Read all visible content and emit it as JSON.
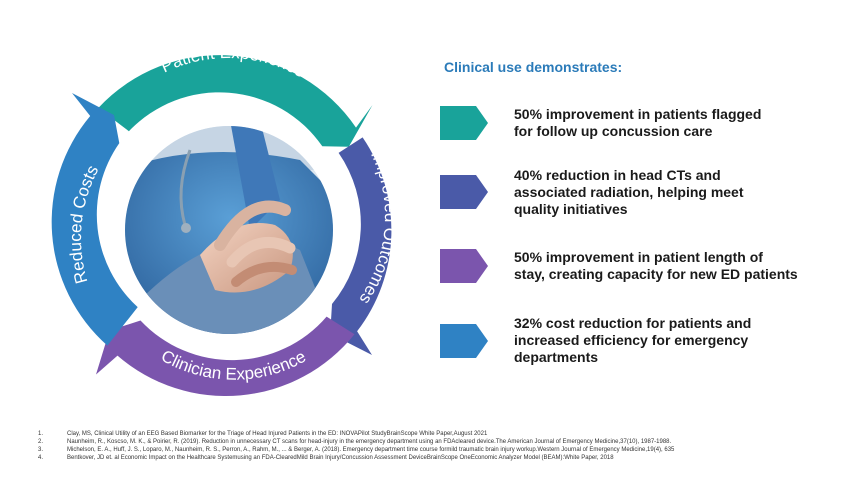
{
  "cycle": {
    "segments": [
      {
        "label": "Patient Experience",
        "color": "#19a39a"
      },
      {
        "label": "Improved Outcomes",
        "color": "#4a5aa8"
      },
      {
        "label": "Clinician Experience",
        "color": "#7b55ad"
      },
      {
        "label": "Reduced Costs",
        "color": "#2f82c4"
      }
    ],
    "center_image": "caregiver-holding-patient-hands-photo"
  },
  "panel": {
    "heading": "Clinical use demonstrates:",
    "bullets": [
      {
        "color": "#19a39a",
        "line1": "50% improvement in patients flagged",
        "line2": "for follow up concussion care",
        "line3": ""
      },
      {
        "color": "#4a5aa8",
        "line1": "40% reduction in head CTs and",
        "line2": "associated radiation, helping meet",
        "line3": "quality initiatives"
      },
      {
        "color": "#7b55ad",
        "line1": "50% improvement in patient length of",
        "line2": "stay, creating capacity for new ED patients",
        "line3": ""
      },
      {
        "color": "#2f82c4",
        "line1": "32% cost reduction for patients and",
        "line2": "increased efficiency for emergency",
        "line3": "departments"
      }
    ]
  },
  "references": [
    {
      "num": "1.",
      "text": "Clay, MS, Clinical Utility of an EEG Based Biomarker for the Triage of Head Injured Patients in the ED: INOVAPilot StudyBrainScope White Paper,August 2021"
    },
    {
      "num": "2.",
      "text": "Naunheim, R., Koscso, M. K., & Poirier, R. (2019). Reduction in unnecessary CT scans for head-injury in the emergency department using an FDAcleared device.The American Journal of Emergency Medicine,37(10), 1987-1988."
    },
    {
      "num": "3.",
      "text": "Michelson, E. A., Huff, J. S., Loparo, M., Naunheim, R. S., Perron, A., Rahm, M., ... & Berger, A. (2018). Emergency department time course formild traumatic brain injury workup.Western Journal of Emergency Medicine,19(4), 635"
    },
    {
      "num": "4.",
      "text": "Bentkover, JD et. al Economic Impact on the Healthcare Systemusing an FDA-ClearedMild Brain Injury/Concussion Assessment DeviceBrainScope OneEconomic Analyzer Model (BEAM):White Paper, 2018"
    }
  ]
}
